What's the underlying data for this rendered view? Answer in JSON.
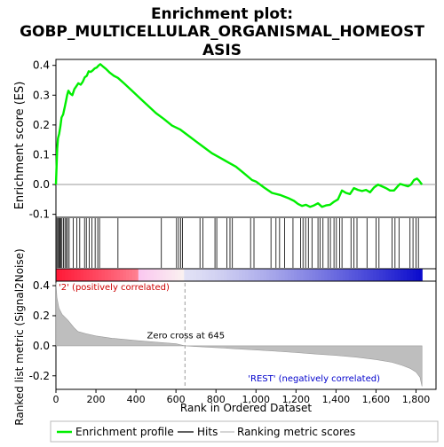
{
  "chart_data": {
    "type": "line",
    "title_line1": "Enrichment plot:",
    "title_line2": "GOBP_MULTICELLULAR_ORGANISMAL_HOMEOST",
    "title_line3": "ASIS",
    "es_panel": {
      "ylabel": "Enrichment score (ES)",
      "ylim": [
        -0.11,
        0.42
      ],
      "yticks": [
        -0.1,
        0.0,
        0.1,
        0.2,
        0.3,
        0.4
      ],
      "ytick_labels": [
        "-0.1",
        "0.0",
        "0.1",
        "0.2",
        "0.3",
        "0.4"
      ],
      "line_color": "#00ee00",
      "points": [
        [
          0,
          0.0
        ],
        [
          3,
          0.06
        ],
        [
          6,
          0.12
        ],
        [
          10,
          0.155
        ],
        [
          16,
          0.17
        ],
        [
          22,
          0.195
        ],
        [
          28,
          0.225
        ],
        [
          36,
          0.235
        ],
        [
          44,
          0.26
        ],
        [
          50,
          0.28
        ],
        [
          56,
          0.3
        ],
        [
          62,
          0.315
        ],
        [
          72,
          0.305
        ],
        [
          82,
          0.3
        ],
        [
          92,
          0.32
        ],
        [
          102,
          0.33
        ],
        [
          112,
          0.34
        ],
        [
          124,
          0.335
        ],
        [
          134,
          0.345
        ],
        [
          144,
          0.36
        ],
        [
          154,
          0.365
        ],
        [
          164,
          0.38
        ],
        [
          174,
          0.378
        ],
        [
          184,
          0.383
        ],
        [
          194,
          0.39
        ],
        [
          204,
          0.393
        ],
        [
          214,
          0.4
        ],
        [
          222,
          0.404
        ],
        [
          232,
          0.398
        ],
        [
          250,
          0.388
        ],
        [
          270,
          0.375
        ],
        [
          290,
          0.365
        ],
        [
          310,
          0.358
        ],
        [
          340,
          0.34
        ],
        [
          380,
          0.315
        ],
        [
          420,
          0.29
        ],
        [
          460,
          0.265
        ],
        [
          500,
          0.24
        ],
        [
          540,
          0.22
        ],
        [
          580,
          0.198
        ],
        [
          620,
          0.185
        ],
        [
          660,
          0.165
        ],
        [
          700,
          0.145
        ],
        [
          740,
          0.125
        ],
        [
          780,
          0.105
        ],
        [
          820,
          0.09
        ],
        [
          860,
          0.075
        ],
        [
          900,
          0.06
        ],
        [
          940,
          0.038
        ],
        [
          980,
          0.015
        ],
        [
          1000,
          0.01
        ],
        [
          1040,
          -0.01
        ],
        [
          1080,
          -0.028
        ],
        [
          1120,
          -0.035
        ],
        [
          1160,
          -0.045
        ],
        [
          1190,
          -0.055
        ],
        [
          1210,
          -0.065
        ],
        [
          1230,
          -0.072
        ],
        [
          1250,
          -0.068
        ],
        [
          1270,
          -0.075
        ],
        [
          1290,
          -0.07
        ],
        [
          1310,
          -0.063
        ],
        [
          1330,
          -0.075
        ],
        [
          1350,
          -0.07
        ],
        [
          1370,
          -0.068
        ],
        [
          1390,
          -0.058
        ],
        [
          1410,
          -0.05
        ],
        [
          1430,
          -0.02
        ],
        [
          1450,
          -0.028
        ],
        [
          1470,
          -0.032
        ],
        [
          1490,
          -0.012
        ],
        [
          1510,
          -0.018
        ],
        [
          1530,
          -0.022
        ],
        [
          1550,
          -0.018
        ],
        [
          1570,
          -0.026
        ],
        [
          1590,
          -0.01
        ],
        [
          1610,
          0.0
        ],
        [
          1630,
          -0.006
        ],
        [
          1650,
          -0.012
        ],
        [
          1670,
          -0.02
        ],
        [
          1690,
          -0.02
        ],
        [
          1710,
          -0.005
        ],
        [
          1720,
          0.002
        ],
        [
          1740,
          -0.002
        ],
        [
          1760,
          -0.006
        ],
        [
          1775,
          0.0
        ],
        [
          1790,
          0.015
        ],
        [
          1805,
          0.02
        ],
        [
          1815,
          0.013
        ],
        [
          1830,
          0.0
        ]
      ]
    },
    "hits": [
      5,
      10,
      15,
      20,
      25,
      30,
      38,
      45,
      52,
      58,
      66,
      86,
      104,
      119,
      143,
      152,
      166,
      180,
      196,
      209,
      218,
      310,
      527,
      603,
      613,
      623,
      633,
      720,
      735,
      795,
      804,
      855,
      870,
      882,
      973,
      990,
      1075,
      1100,
      1118,
      1143,
      1185,
      1223,
      1235,
      1248,
      1262,
      1280,
      1310,
      1320,
      1335,
      1360,
      1372,
      1390,
      1402,
      1418,
      1430,
      1475,
      1490,
      1505,
      1555,
      1600,
      1615,
      1680,
      1695,
      1715,
      1770,
      1785,
      1800,
      1812
    ],
    "rank_bar": {
      "label_pos": "'2' (positively correlated)",
      "label_neg": "'REST' (negatively correlated)",
      "zero_cross_label": "Zero cross at 645",
      "zero_cross": 645
    },
    "metric_panel": {
      "ylabel": "Ranked list metric (Signal2Noise)",
      "ylim": [
        -0.29,
        0.43
      ],
      "yticks": [
        -0.2,
        0.0,
        0.2,
        0.4
      ],
      "ytick_labels": [
        "-0.2",
        "0.0",
        "0.2",
        "0.4"
      ],
      "fill_color": "#bebebe",
      "points": [
        [
          0,
          0.42
        ],
        [
          5,
          0.32
        ],
        [
          15,
          0.25
        ],
        [
          30,
          0.21
        ],
        [
          60,
          0.17
        ],
        [
          90,
          0.12
        ],
        [
          110,
          0.095
        ],
        [
          150,
          0.08
        ],
        [
          200,
          0.065
        ],
        [
          280,
          0.05
        ],
        [
          400,
          0.035
        ],
        [
          500,
          0.024
        ],
        [
          600,
          0.014
        ],
        [
          645,
          0.0
        ],
        [
          700,
          -0.005
        ],
        [
          800,
          -0.012
        ],
        [
          900,
          -0.02
        ],
        [
          1000,
          -0.028
        ],
        [
          1100,
          -0.036
        ],
        [
          1200,
          -0.045
        ],
        [
          1300,
          -0.055
        ],
        [
          1400,
          -0.064
        ],
        [
          1500,
          -0.076
        ],
        [
          1600,
          -0.092
        ],
        [
          1680,
          -0.11
        ],
        [
          1730,
          -0.13
        ],
        [
          1770,
          -0.15
        ],
        [
          1800,
          -0.175
        ],
        [
          1820,
          -0.21
        ],
        [
          1830,
          -0.27
        ]
      ]
    },
    "xaxis": {
      "xlabel": "Rank in Ordered Dataset",
      "xlim": [
        0,
        1900
      ],
      "xticks": [
        0,
        200,
        400,
        600,
        800,
        1000,
        1200,
        1400,
        1600,
        1800
      ],
      "xtick_labels": [
        "0",
        "200",
        "400",
        "600",
        "800",
        "1,000",
        "1,200",
        "1,400",
        "1,600",
        "1,800"
      ],
      "n_genes": 1830
    },
    "legend": {
      "placement": "bottom",
      "items": [
        {
          "label": "Enrichment profile",
          "color": "#00ee00"
        },
        {
          "label": "Hits",
          "color": "#000000"
        },
        {
          "label": "Ranking metric scores",
          "color": "#bebebe"
        }
      ]
    }
  }
}
